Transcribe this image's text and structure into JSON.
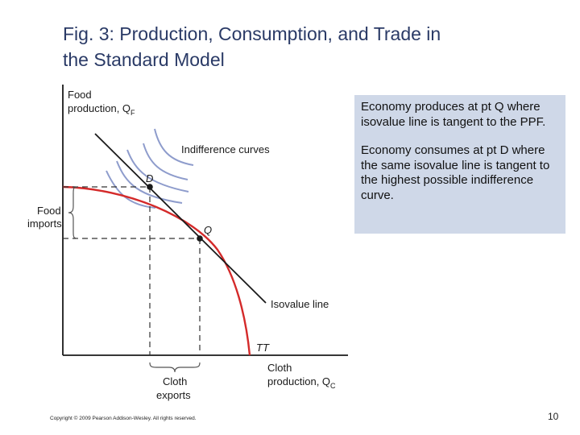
{
  "slide": {
    "title_line1": "Fig. 3: Production, Consumption, and Trade in",
    "title_line2": "the Standard Model",
    "footer": "Copyright © 2009 Pearson Addison-Wesley. All rights reserved.",
    "page_number": "10"
  },
  "callout": {
    "paragraph1": "Economy produces at pt Q where isovalue line is tangent to the PPF.",
    "paragraph2": "Economy consumes at pt D where the same isovalue line is tangent to the highest possible indifference curve."
  },
  "diagram": {
    "y_axis_label_line1": "Food",
    "y_axis_label_line2": "production, Q",
    "y_axis_label_sub": "F",
    "x_axis_label_line1": "Cloth",
    "x_axis_label_line2": "production, Q",
    "x_axis_label_sub": "C",
    "indifference_label": "Indifference curves",
    "isovalue_label": "Isovalue line",
    "ppf_label": "TT",
    "point_d": "D",
    "point_q": "Q",
    "food_imports_line1": "Food",
    "food_imports_line2": "imports",
    "cloth_exports_line1": "Cloth",
    "cloth_exports_line2": "exports",
    "colors": {
      "ppf": "#d42a2a",
      "indifference": "#8e9ccc",
      "axes": "#1a1a1a",
      "title": "#2a3a66",
      "callout_bg": "#cfd8e8"
    }
  }
}
